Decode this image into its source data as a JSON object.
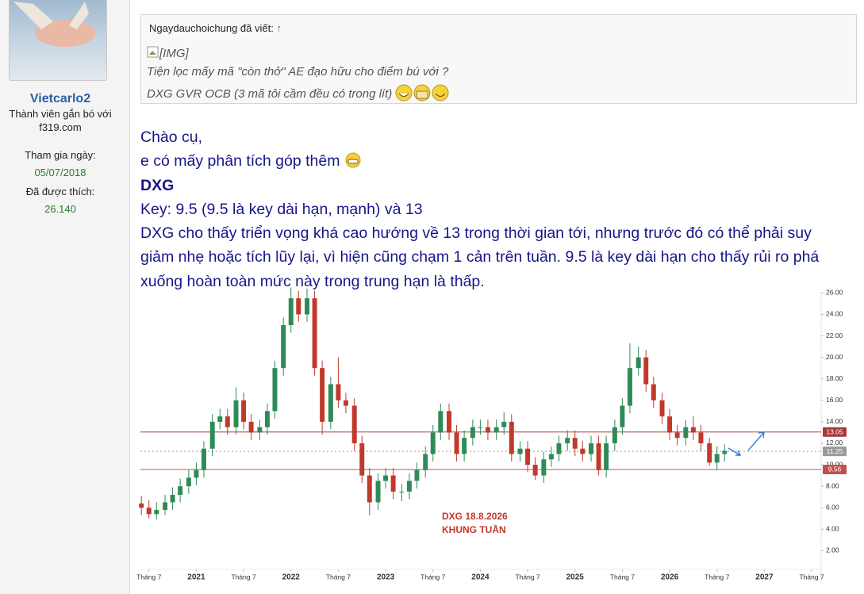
{
  "user": {
    "name": "Vietcarlo2",
    "title_line1": "Thành viên gắn bó với",
    "title_line2": "f319.com",
    "joined_label": "Tham gia ngày:",
    "joined": "05/07/2018",
    "likes_label": "Đã được thích:",
    "likes": "26.140"
  },
  "quote": {
    "author": "Ngaydauchoichung đã viết:",
    "arrow": "↑",
    "img_alt": "[IMG]",
    "lines": [
      "Tiện lọc mấy mã \"còn thở\" AE đạo hữu cho điểm bú với ?",
      "DXG GVR OCB (3 mã tôi cầm đều có trong lít)"
    ]
  },
  "post": {
    "lines": [
      "Chào cụ,",
      "e có mấy phân tích góp thêm",
      "DXG",
      "Key: 9.5 (9.5 là key dài hạn, mạnh) và 13",
      "DXG cho thấy triển vọng khá cao hướng về 13 trong thời gian tới, nhưng trước đó có thể phải suy",
      "giảm nhẹ hoặc tích lũy lại, vì hiện cũng chạm 1 cản trên tuần. 9.5 là key dài hạn cho thấy rủi ro phá",
      "xuống hoàn toàn mức này trong trung hạn là thấp."
    ]
  },
  "chart_data": {
    "type": "candlestick",
    "annotations": [
      "DXG 18.8.2026",
      "KHUNG TUẦN"
    ],
    "up_color": "#2e8b57",
    "down_color": "#c0392b",
    "x": [
      2020.42,
      2020.5,
      2020.58,
      2020.67,
      2020.75,
      2020.83,
      2020.92,
      2021,
      2021.08,
      2021.17,
      2021.25,
      2021.33,
      2021.42,
      2021.5,
      2021.58,
      2021.67,
      2021.75,
      2021.83,
      2021.92,
      2022,
      2022.08,
      2022.17,
      2022.25,
      2022.33,
      2022.42,
      2022.5,
      2022.58,
      2022.67,
      2022.75,
      2022.83,
      2022.92,
      2023,
      2023.08,
      2023.17,
      2023.25,
      2023.33,
      2023.42,
      2023.5,
      2023.58,
      2023.67,
      2023.75,
      2023.83,
      2023.92,
      2024,
      2024.08,
      2024.17,
      2024.25,
      2024.33,
      2024.42,
      2024.5,
      2024.58,
      2024.67,
      2024.75,
      2024.83,
      2024.92,
      2025,
      2025.08,
      2025.17,
      2025.25,
      2025.33,
      2025.42,
      2025.5,
      2025.58,
      2025.67,
      2025.75,
      2025.83,
      2025.92,
      2026,
      2026.08,
      2026.17,
      2026.25,
      2026.33,
      2026.42,
      2026.5,
      2026.58
    ],
    "open": [
      6.4,
      6.0,
      5.4,
      5.8,
      6.5,
      7.2,
      8.0,
      8.8,
      9.5,
      11.5,
      14.0,
      14.5,
      13.5,
      16.0,
      14.0,
      13.0,
      13.5,
      15.0,
      19.0,
      23.0,
      25.5,
      24.0,
      25.5,
      19.0,
      14.0,
      17.5,
      16.0,
      15.5,
      12.0,
      9.0,
      6.5,
      8.5,
      9.0,
      7.5,
      7.5,
      8.5,
      9.5,
      11.0,
      13.0,
      15.0,
      13.0,
      11.0,
      12.5,
      13.5,
      13.5,
      13.0,
      13.5,
      14.0,
      11.0,
      11.5,
      10.0,
      9.0,
      10.5,
      11.0,
      12.0,
      12.5,
      11.5,
      11.0,
      12.0,
      9.5,
      12.0,
      13.5,
      15.5,
      19.0,
      20.0,
      17.5,
      16.0,
      14.5,
      13.0,
      12.5,
      13.5,
      13.0,
      12.0,
      10.2,
      11.0
    ],
    "high": [
      7.1,
      6.7,
      6.5,
      7.2,
      7.9,
      8.7,
      9.5,
      10.2,
      12.2,
      14.7,
      15.2,
      15.2,
      17.2,
      16.7,
      14.7,
      14.2,
      15.7,
      19.7,
      23.7,
      26.5,
      26.2,
      26.4,
      26.2,
      19.7,
      18.2,
      20.0,
      16.7,
      16.2,
      12.7,
      9.7,
      9.2,
      9.7,
      9.7,
      8.2,
      9.2,
      10.2,
      11.7,
      13.7,
      15.7,
      15.7,
      13.7,
      13.2,
      14.2,
      14.2,
      14.2,
      14.2,
      14.9,
      14.7,
      12.2,
      12.2,
      10.7,
      11.2,
      11.7,
      12.7,
      13.2,
      13.2,
      12.2,
      12.7,
      12.7,
      12.7,
      14.2,
      16.2,
      21.3,
      21.0,
      20.7,
      18.2,
      16.7,
      15.2,
      13.7,
      14.2,
      14.5,
      13.7,
      12.5,
      11.7,
      11.9
    ],
    "low": [
      5.3,
      5.0,
      4.9,
      5.3,
      5.8,
      6.5,
      7.3,
      8.1,
      8.8,
      10.8,
      13.3,
      12.8,
      12.8,
      13.3,
      12.3,
      12.3,
      12.8,
      14.3,
      18.3,
      22.3,
      23.3,
      23.3,
      18.3,
      12.8,
      13.3,
      15.3,
      14.8,
      11.3,
      8.3,
      5.3,
      5.8,
      7.8,
      6.8,
      6.6,
      6.8,
      7.8,
      8.8,
      10.3,
      12.3,
      12.3,
      10.3,
      10.3,
      11.8,
      12.8,
      12.3,
      12.3,
      12.8,
      10.3,
      10.3,
      9.3,
      8.6,
      8.3,
      9.8,
      10.3,
      11.3,
      10.8,
      10.3,
      10.3,
      9.0,
      8.8,
      11.3,
      12.8,
      14.8,
      18.3,
      16.8,
      15.3,
      13.8,
      12.3,
      11.8,
      11.8,
      12.3,
      11.3,
      9.9,
      9.5,
      10.3
    ],
    "close": [
      6.0,
      5.4,
      5.8,
      6.5,
      7.2,
      8.0,
      8.8,
      9.5,
      11.5,
      14.0,
      14.5,
      13.5,
      16.0,
      14.0,
      13.0,
      13.5,
      15.0,
      19.0,
      23.0,
      25.5,
      24.0,
      25.5,
      19.0,
      14.0,
      17.5,
      16.0,
      15.5,
      12.0,
      9.0,
      6.5,
      8.5,
      9.0,
      7.5,
      7.5,
      8.5,
      9.5,
      11.0,
      13.0,
      15.0,
      13.0,
      11.0,
      12.5,
      13.5,
      13.5,
      13.0,
      13.5,
      14.0,
      11.0,
      11.5,
      10.0,
      9.0,
      10.5,
      11.0,
      12.0,
      12.5,
      11.5,
      11.0,
      12.0,
      9.5,
      12.0,
      13.5,
      15.5,
      19.0,
      20.0,
      17.5,
      16.0,
      14.5,
      13.0,
      12.5,
      13.5,
      13.0,
      12.0,
      10.2,
      11.0,
      11.3
    ],
    "hlines": [
      {
        "value": 13.05,
        "color": "#a8393b",
        "dash": false
      },
      {
        "value": 11.25,
        "color": "#9a9a9a",
        "dash": true
      },
      {
        "value": 9.56,
        "color": "#c0504d",
        "dash": false
      }
    ],
    "xlim": [
      2020.41,
      2027.6
    ],
    "xticks": [
      {
        "value": 2020.5,
        "label": "Tháng 7"
      },
      2021,
      {
        "value": 2021.5,
        "label": "Tháng 7"
      },
      2022,
      {
        "value": 2022.5,
        "label": "Tháng 7"
      },
      2023,
      {
        "value": 2023.5,
        "label": "Tháng 7"
      },
      2024,
      {
        "value": 2024.5,
        "label": "Tháng 7"
      },
      2025,
      {
        "value": 2025.5,
        "label": "Tháng 7"
      },
      2026,
      {
        "value": 2026.5,
        "label": "Tháng 7"
      },
      2027,
      {
        "value": 2027.5,
        "label": "Tháng 7"
      }
    ],
    "ylim": [
      -1,
      26.1
    ],
    "yticks": [
      {
        "value": 2,
        "label": "2.00"
      },
      {
        "value": 4,
        "label": "4.00"
      },
      {
        "value": 6,
        "label": "6.00"
      },
      {
        "value": 8,
        "label": "8.00"
      },
      {
        "value": 10,
        "label": "10.00"
      },
      {
        "value": 12,
        "label": "12.00"
      },
      {
        "value": 14,
        "label": "14.00"
      },
      {
        "value": 16,
        "label": "16.00"
      },
      {
        "value": 18,
        "label": "18.00"
      },
      {
        "value": 20,
        "label": "20.00"
      },
      {
        "value": 22,
        "label": "22.00"
      },
      {
        "value": 24,
        "label": "24.00"
      },
      {
        "value": 26,
        "label": "26.00"
      }
    ]
  }
}
